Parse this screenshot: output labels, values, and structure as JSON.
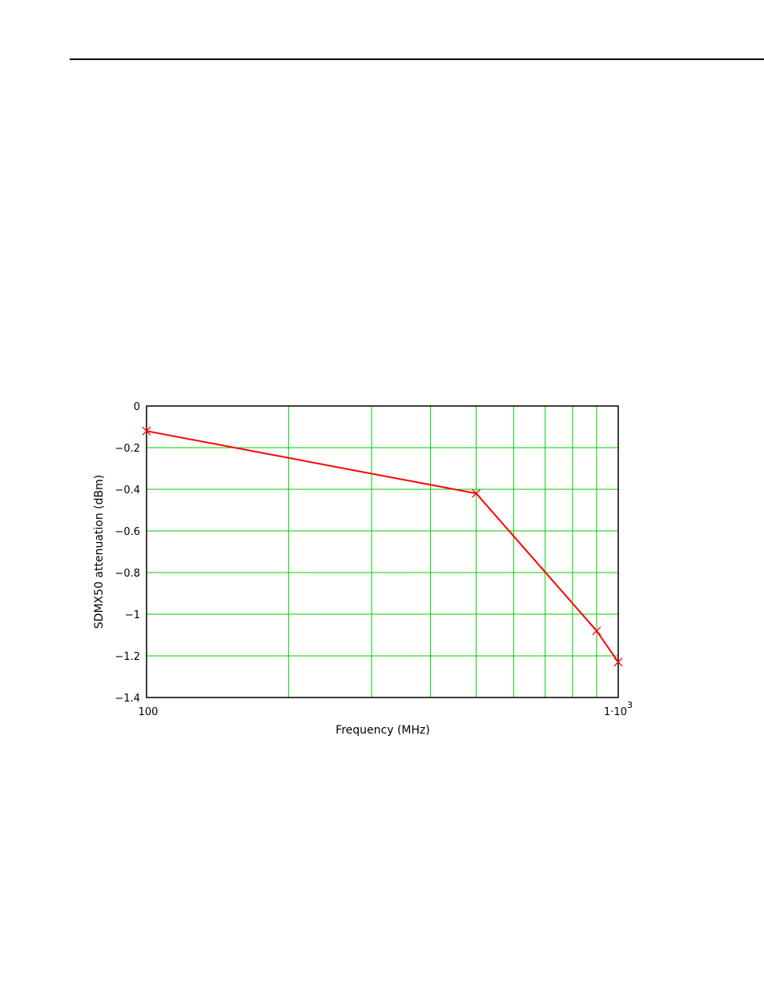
{
  "chart_data": {
    "type": "line",
    "title": "",
    "xlabel": "Frequency (MHz)",
    "ylabel": "SDMX50 attenuation (dBm)",
    "x_scale": "log",
    "xlim": [
      100,
      1000
    ],
    "ylim": [
      -1.4,
      0
    ],
    "grid": true,
    "x_tick_labels": {
      "min_label": "100",
      "max_label_base": "1·10",
      "max_label_exp": "3"
    },
    "y_ticks": [
      0,
      -0.2,
      -0.4,
      -0.6,
      -0.8,
      -1,
      -1.2,
      -1.4
    ],
    "y_tick_labels": [
      "0",
      "−0.2",
      "−0.4",
      "−0.6",
      "−0.8",
      "−1",
      "−1.2",
      "−1.4"
    ],
    "x_gridlines": [
      200,
      300,
      400,
      500,
      600,
      700,
      800,
      900
    ],
    "series": [
      {
        "x": [
          100,
          500,
          900,
          1000
        ],
        "y": [
          -0.12,
          -0.42,
          -1.08,
          -1.23
        ]
      }
    ],
    "colors": {
      "line": "#ff0000",
      "grid": "#00cc00",
      "frame": "#000000"
    }
  }
}
